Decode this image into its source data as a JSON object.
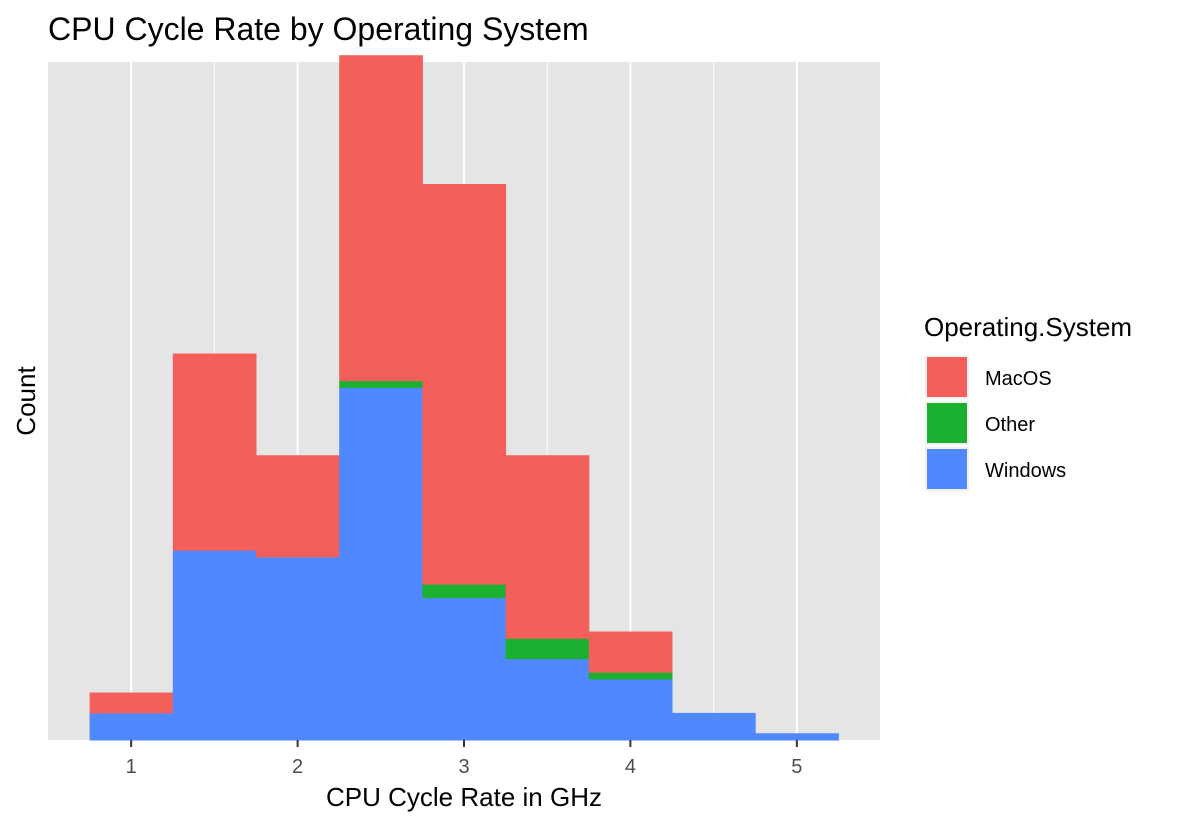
{
  "chart_data": {
    "type": "bar",
    "stacked": true,
    "histogram": true,
    "title": "CPU Cycle Rate by Operating System",
    "xlabel": "CPU Cycle Rate in GHz",
    "ylabel": "Count",
    "x_ticks": [
      "1",
      "2",
      "3",
      "4",
      "5"
    ],
    "x_tick_values": [
      1,
      2,
      3,
      4,
      5
    ],
    "xlim": [
      0.5,
      5.5
    ],
    "ylim": [
      0,
      100
    ],
    "y_ticks_shown": false,
    "bin_width": 0.5,
    "bin_centers": [
      1.0,
      1.5,
      2.0,
      2.5,
      3.0,
      3.5,
      4.0,
      4.5,
      5.0
    ],
    "series": [
      {
        "name": "Windows",
        "color": "#4F88FF",
        "values": [
          4,
          28,
          27,
          52,
          21,
          12,
          9,
          4,
          1
        ]
      },
      {
        "name": "Other",
        "color": "#1BB02F",
        "values": [
          0,
          0,
          0,
          1,
          2,
          3,
          1,
          0,
          0
        ]
      },
      {
        "name": "MacOS",
        "color": "#F3605B",
        "values": [
          3,
          29,
          15,
          48,
          59,
          27,
          6,
          0,
          0
        ]
      }
    ],
    "grid": true,
    "legend": {
      "title": "Operating.System",
      "position": "right",
      "entries": [
        {
          "label": "MacOS",
          "color": "#F3605B"
        },
        {
          "label": "Other",
          "color": "#1BB02F"
        },
        {
          "label": "Windows",
          "color": "#4F88FF"
        }
      ]
    },
    "panel_background": "#E5E5E5",
    "grid_color": "#FFFFFF"
  }
}
